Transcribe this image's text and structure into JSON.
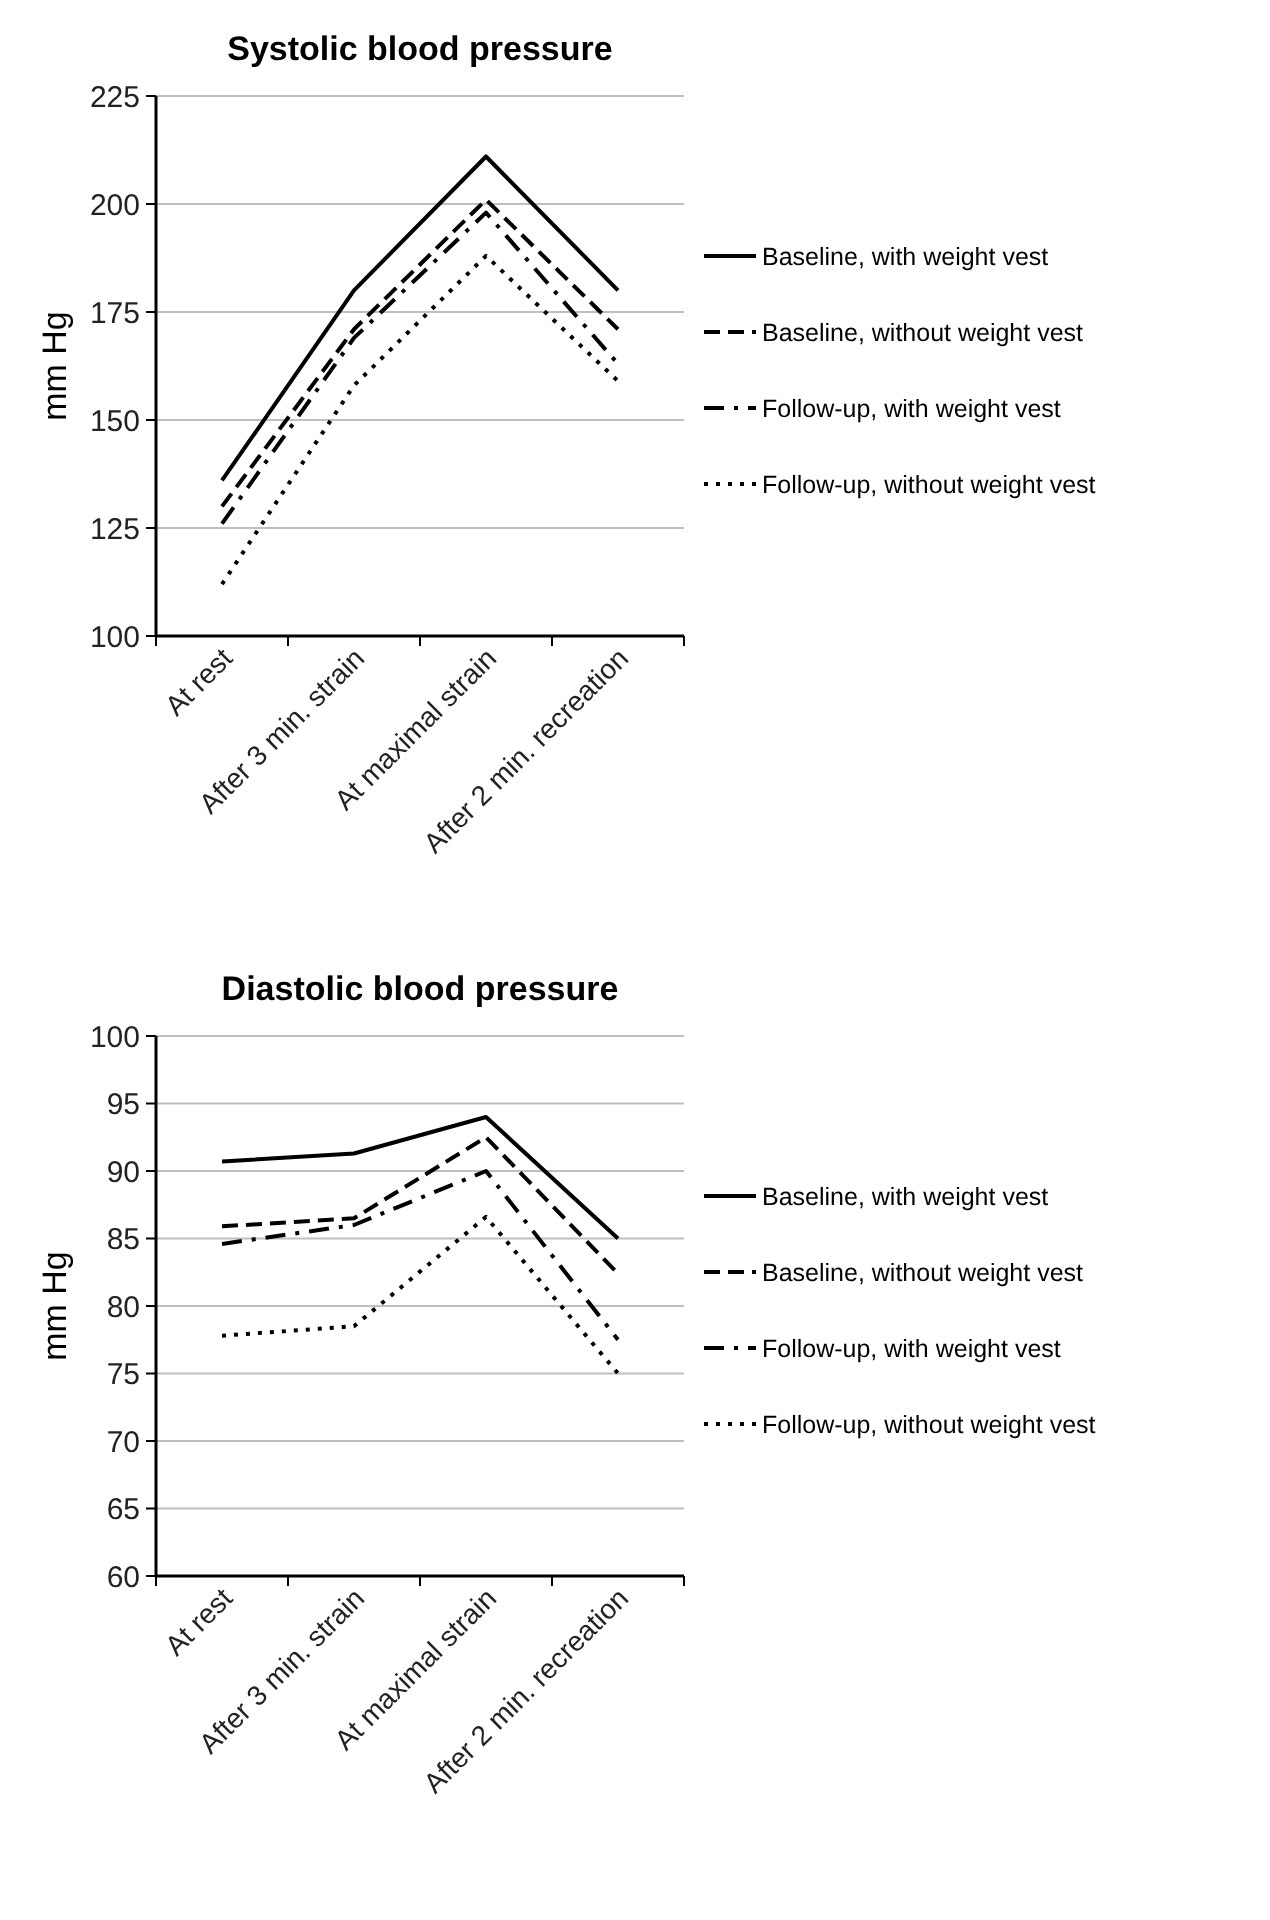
{
  "chart_data": [
    {
      "type": "line",
      "title": "Systolic blood pressure",
      "ylabel": "mm Hg",
      "categories": [
        "At rest",
        "After 3 min. strain",
        "At maximal strain",
        "After 2 min. recreation"
      ],
      "ylim": [
        100,
        225
      ],
      "yticks": [
        100,
        125,
        150,
        175,
        200,
        225
      ],
      "grid": "y",
      "legend": "right",
      "series": [
        {
          "name": "Baseline, with weight vest",
          "color": "#000000",
          "line_style": "solid",
          "values": [
            136,
            180,
            211,
            180
          ]
        },
        {
          "name": "Baseline, without weight vest",
          "color": "#000000",
          "line_style": "dashed",
          "values": [
            130,
            171,
            201,
            171
          ]
        },
        {
          "name": "Follow-up, with weight vest",
          "color": "#000000",
          "line_style": "dashdot",
          "values": [
            126,
            169,
            198,
            163
          ]
        },
        {
          "name": "Follow-up, without weight vest",
          "color": "#000000",
          "line_style": "dotted",
          "values": [
            112,
            158,
            188,
            159
          ]
        }
      ]
    },
    {
      "type": "line",
      "title": "Diastolic blood pressure",
      "ylabel": "mm Hg",
      "categories": [
        "At rest",
        "After 3 min. strain",
        "At maximal strain",
        "After 2 min. recreation"
      ],
      "ylim": [
        60,
        100
      ],
      "yticks": [
        60,
        65,
        70,
        75,
        80,
        85,
        90,
        95,
        100
      ],
      "grid": "y",
      "legend": "right",
      "series": [
        {
          "name": "Baseline, with weight vest",
          "color": "#000000",
          "line_style": "solid",
          "values": [
            90.7,
            91.3,
            94,
            85
          ]
        },
        {
          "name": "Baseline, without weight vest",
          "color": "#000000",
          "line_style": "dashed",
          "values": [
            85.9,
            86.5,
            92.5,
            82.4
          ]
        },
        {
          "name": "Follow-up, with weight vest",
          "color": "#000000",
          "line_style": "dashdot",
          "values": [
            84.6,
            86,
            90,
            77.5
          ]
        },
        {
          "name": "Follow-up, without weight vest",
          "color": "#000000",
          "line_style": "dotted",
          "values": [
            77.8,
            78.5,
            86.6,
            75
          ]
        }
      ]
    }
  ]
}
